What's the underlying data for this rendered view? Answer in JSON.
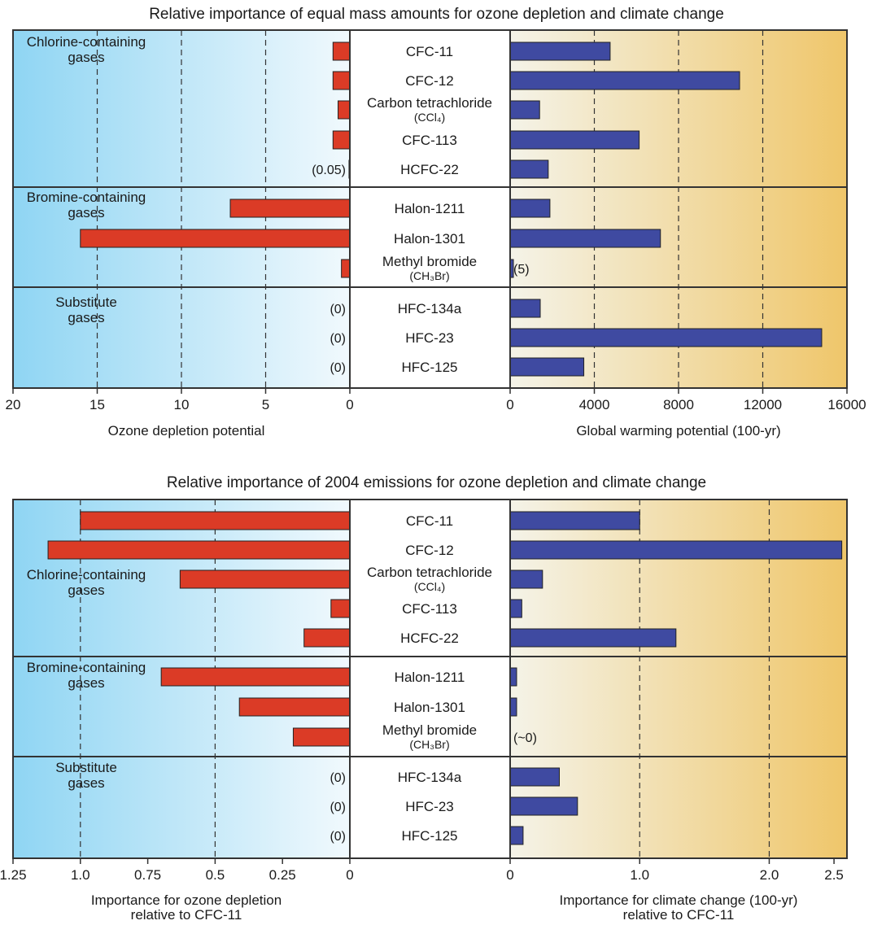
{
  "chart_data": [
    {
      "type": "bar",
      "title": "Relative importance of equal mass amounts for ozone depletion and climate change",
      "groups": [
        {
          "label": "Chlorine-containing gases",
          "gases": [
            "CFC-11",
            "CFC-12",
            "Carbon tetrachloride (CCl4)",
            "CFC-113",
            "HCFC-22"
          ]
        },
        {
          "label": "Bromine-containing gases",
          "gases": [
            "Halon-1211",
            "Halon-1301",
            "Methyl bromide (CH3Br)"
          ]
        },
        {
          "label": "Substitute gases",
          "gases": [
            "HFC-134a",
            "HFC-23",
            "HFC-125"
          ]
        }
      ],
      "gas_labels": [
        {
          "name": "CFC-11",
          "sub": ""
        },
        {
          "name": "CFC-12",
          "sub": ""
        },
        {
          "name": "Carbon tetrachloride",
          "sub": "(CCl₄)"
        },
        {
          "name": "CFC-113",
          "sub": ""
        },
        {
          "name": "HCFC-22",
          "sub": ""
        },
        {
          "name": "Halon-1211",
          "sub": ""
        },
        {
          "name": "Halon-1301",
          "sub": ""
        },
        {
          "name": "Methyl bromide",
          "sub": "(CH₃Br)"
        },
        {
          "name": "HFC-134a",
          "sub": ""
        },
        {
          "name": "HFC-23",
          "sub": ""
        },
        {
          "name": "HFC-125",
          "sub": ""
        }
      ],
      "left": {
        "name": "Ozone depletion potential",
        "xlabel": [
          "Ozone depletion potential"
        ],
        "xlim": [
          20,
          0
        ],
        "ticks": [
          20,
          15,
          10,
          5,
          0
        ],
        "tick_labels": [
          "20",
          "15",
          "10",
          "5",
          "0"
        ],
        "gridlines": [
          15,
          10,
          5
        ],
        "values": [
          1,
          1,
          0.7,
          1,
          0.05,
          7.1,
          16,
          0.5,
          0,
          0,
          0
        ],
        "annotations": [
          "",
          "",
          "",
          "",
          "(0.05)",
          "",
          "",
          "",
          "(0)",
          "(0)",
          "(0)"
        ],
        "color": "#db3b26"
      },
      "right": {
        "name": "Global warming potential (100-yr)",
        "xlabel": [
          "Global warming potential (100-yr)"
        ],
        "xlim": [
          0,
          16000
        ],
        "ticks": [
          0,
          4000,
          8000,
          12000,
          16000
        ],
        "tick_labels": [
          "0",
          "4000",
          "8000",
          "12000",
          "16000"
        ],
        "gridlines": [
          4000,
          8000,
          12000
        ],
        "values": [
          4750,
          10900,
          1400,
          6130,
          1810,
          1890,
          7140,
          5,
          1430,
          14800,
          3500
        ],
        "annotations": [
          "",
          "",
          "",
          "",
          "",
          "",
          "",
          "(5)",
          "",
          "",
          ""
        ],
        "color": "#3f4aa1"
      }
    },
    {
      "type": "bar",
      "title": "Relative importance of 2004 emissions for ozone depletion and climate change",
      "groups": [
        {
          "label": "Chlorine-containing gases",
          "gases": [
            "CFC-11",
            "CFC-12",
            "Carbon tetrachloride (CCl4)",
            "CFC-113",
            "HCFC-22"
          ]
        },
        {
          "label": "Bromine-containing gases",
          "gases": [
            "Halon-1211",
            "Halon-1301",
            "Methyl bromide (CH3Br)"
          ]
        },
        {
          "label": "Substitute gases",
          "gases": [
            "HFC-134a",
            "HFC-23",
            "HFC-125"
          ]
        }
      ],
      "gas_labels": [
        {
          "name": "CFC-11",
          "sub": ""
        },
        {
          "name": "CFC-12",
          "sub": ""
        },
        {
          "name": "Carbon tetrachloride",
          "sub": "(CCl₄)"
        },
        {
          "name": "CFC-113",
          "sub": ""
        },
        {
          "name": "HCFC-22",
          "sub": ""
        },
        {
          "name": "Halon-1211",
          "sub": ""
        },
        {
          "name": "Halon-1301",
          "sub": ""
        },
        {
          "name": "Methyl bromide",
          "sub": "(CH₃Br)"
        },
        {
          "name": "HFC-134a",
          "sub": ""
        },
        {
          "name": "HFC-23",
          "sub": ""
        },
        {
          "name": "HFC-125",
          "sub": ""
        }
      ],
      "left": {
        "name": "Importance for ozone depletion relative to CFC-11",
        "xlabel": [
          "Importance for ozone depletion",
          "relative to CFC-11"
        ],
        "xlim": [
          1.25,
          0
        ],
        "ticks": [
          1.25,
          1.0,
          0.75,
          0.5,
          0.25,
          0
        ],
        "tick_labels": [
          "1.25",
          "1.0",
          "0.75",
          "0.5",
          "0.25",
          "0"
        ],
        "gridlines": [
          1.0,
          0.5
        ],
        "values": [
          1.0,
          1.12,
          0.63,
          0.07,
          0.17,
          0.7,
          0.41,
          0.21,
          0,
          0,
          0
        ],
        "annotations": [
          "",
          "",
          "",
          "",
          "",
          "",
          "",
          "",
          "(0)",
          "(0)",
          "(0)"
        ],
        "color": "#db3b26"
      },
      "right": {
        "name": "Importance for climate change (100-yr) relative to CFC-11",
        "xlabel": [
          "Importance for climate change (100-yr)",
          "relative to CFC-11"
        ],
        "xlim": [
          0,
          2.6
        ],
        "ticks": [
          0,
          1.0,
          2.0,
          2.5
        ],
        "tick_labels": [
          "0",
          "1.0",
          "2.0",
          "2.5"
        ],
        "gridlines": [
          1.0,
          2.0
        ],
        "values": [
          1.0,
          2.56,
          0.25,
          0.09,
          1.28,
          0.05,
          0.05,
          0,
          0.38,
          0.52,
          0.1
        ],
        "annotations": [
          "",
          "",
          "",
          "",
          "",
          "",
          "",
          "(~0)",
          "",
          "",
          ""
        ],
        "color": "#3f4aa1"
      }
    }
  ]
}
